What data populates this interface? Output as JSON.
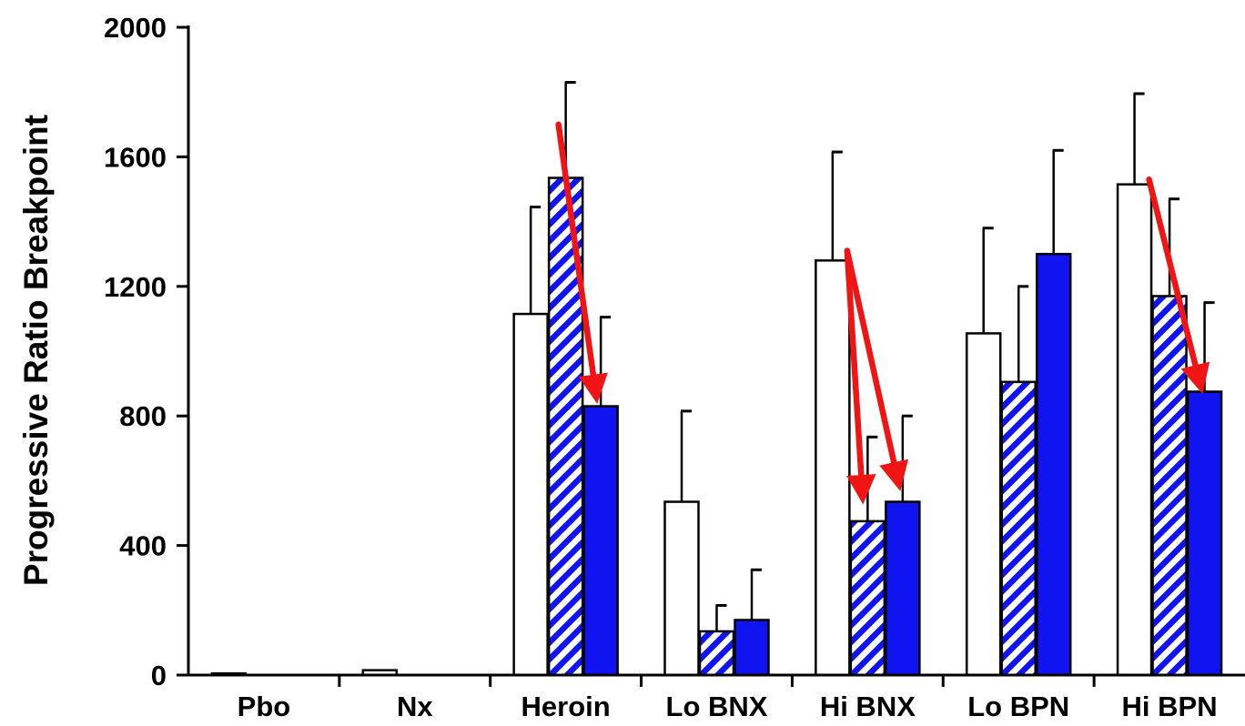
{
  "chart_data": {
    "type": "bar",
    "title": "",
    "xlabel": "",
    "ylabel": "Progressive Ratio Breakpoint",
    "ylim": [
      0,
      2000
    ],
    "yticks": [
      0,
      400,
      800,
      1200,
      1600,
      2000
    ],
    "grid": false,
    "legend": "none",
    "categories": [
      "Pbo",
      "Nx",
      "Heroin",
      "Lo BNX",
      "Hi BNX",
      "Lo BPN",
      "Hi BPN"
    ],
    "series": [
      {
        "style": "open",
        "values": [
          5,
          15,
          1115,
          535,
          1280,
          1055,
          1515
        ],
        "error": [
          0,
          0,
          330,
          280,
          335,
          325,
          280
        ]
      },
      {
        "style": "hatched",
        "values": [
          0,
          0,
          1535,
          135,
          475,
          905,
          1170
        ],
        "error": [
          0,
          0,
          295,
          80,
          260,
          295,
          300
        ]
      },
      {
        "style": "solid",
        "values": [
          0,
          0,
          830,
          170,
          535,
          1300,
          875
        ],
        "error": [
          0,
          0,
          275,
          155,
          265,
          320,
          275
        ]
      }
    ],
    "annotations": [
      {
        "type": "arrow",
        "category": "Heroin",
        "from_series": 1,
        "to_series": 2,
        "from_y": 1700,
        "to_y": 830
      },
      {
        "type": "arrow",
        "category": "Hi BNX",
        "from_series": 0,
        "to_series": 1,
        "from_y": 1310,
        "to_y": 520
      },
      {
        "type": "arrow",
        "category": "Hi BNX",
        "from_series": 0,
        "to_series": 2,
        "from_y": 1310,
        "to_y": 560
      },
      {
        "type": "arrow",
        "category": "Hi BPN",
        "from_series": 0,
        "to_series": 2,
        "from_y": 1530,
        "to_y": 860
      }
    ],
    "colors": {
      "bar_fill": "#0f14f0",
      "bar_outline": "#000000",
      "hatch_bg": "#ffffff",
      "arrow": "#f01414"
    }
  }
}
